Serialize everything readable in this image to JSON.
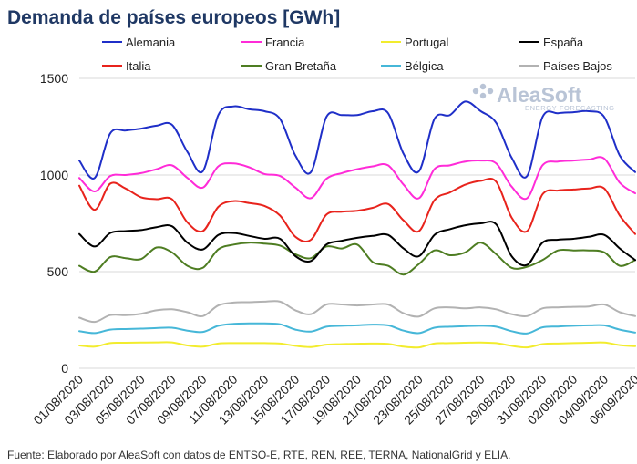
{
  "chart_data": {
    "type": "line",
    "title": "Demanda de países europeos [GWh]",
    "xlabel": "",
    "ylabel": "",
    "ylim": [
      0,
      1500
    ],
    "yticks": [
      0,
      500,
      1000,
      1500
    ],
    "grid": "horizontal",
    "legend": "top",
    "x": [
      "01/08/2020",
      "02/08/2020",
      "03/08/2020",
      "04/08/2020",
      "05/08/2020",
      "06/08/2020",
      "07/08/2020",
      "08/08/2020",
      "09/08/2020",
      "10/08/2020",
      "11/08/2020",
      "12/08/2020",
      "13/08/2020",
      "14/08/2020",
      "15/08/2020",
      "16/08/2020",
      "17/08/2020",
      "18/08/2020",
      "19/08/2020",
      "20/08/2020",
      "21/08/2020",
      "22/08/2020",
      "23/08/2020",
      "24/08/2020",
      "25/08/2020",
      "26/08/2020",
      "27/08/2020",
      "28/08/2020",
      "29/08/2020",
      "30/08/2020",
      "31/08/2020",
      "01/09/2020",
      "02/09/2020",
      "03/09/2020",
      "04/09/2020",
      "05/09/2020",
      "06/09/2020"
    ],
    "xtick_labels": [
      "01/08/2020",
      "03/08/2020",
      "05/08/2020",
      "07/08/2020",
      "09/08/2020",
      "11/08/2020",
      "13/08/2020",
      "15/08/2020",
      "17/08/2020",
      "19/08/2020",
      "21/08/2020",
      "23/08/2020",
      "25/08/2020",
      "27/08/2020",
      "29/08/2020",
      "31/08/2020",
      "02/09/2020",
      "04/09/2020",
      "06/09/2020"
    ],
    "series": [
      {
        "name": "Alemania",
        "color": "#1f2fc8",
        "values": [
          1075,
          985,
          1215,
          1230,
          1240,
          1255,
          1260,
          1120,
          1020,
          1310,
          1355,
          1340,
          1330,
          1290,
          1100,
          1015,
          1300,
          1310,
          1310,
          1330,
          1320,
          1110,
          1020,
          1290,
          1310,
          1380,
          1330,
          1270,
          1090,
          995,
          1300,
          1320,
          1325,
          1330,
          1300,
          1100,
          1015
        ]
      },
      {
        "name": "Francia",
        "color": "#ff2bd8",
        "values": [
          985,
          915,
          995,
          1000,
          1010,
          1030,
          1050,
          985,
          935,
          1045,
          1060,
          1040,
          1005,
          995,
          935,
          880,
          980,
          1010,
          1030,
          1045,
          1050,
          950,
          880,
          1030,
          1050,
          1070,
          1075,
          1060,
          940,
          880,
          1050,
          1070,
          1075,
          1080,
          1085,
          960,
          905
        ]
      },
      {
        "name": "Portugal",
        "color": "#f2ec2e",
        "values": [
          118,
          112,
          130,
          132,
          133,
          134,
          134,
          118,
          112,
          128,
          130,
          130,
          130,
          128,
          116,
          110,
          122,
          125,
          127,
          128,
          126,
          112,
          108,
          128,
          130,
          132,
          133,
          130,
          116,
          108,
          125,
          128,
          130,
          132,
          133,
          120,
          114
        ]
      },
      {
        "name": "España",
        "color": "#000000",
        "values": [
          695,
          630,
          700,
          710,
          715,
          730,
          735,
          650,
          615,
          690,
          700,
          685,
          670,
          670,
          580,
          555,
          640,
          660,
          675,
          685,
          690,
          620,
          580,
          690,
          720,
          740,
          750,
          745,
          580,
          535,
          650,
          665,
          670,
          680,
          690,
          620,
          560
        ]
      },
      {
        "name": "Italia",
        "color": "#e8231c",
        "values": [
          945,
          820,
          955,
          930,
          885,
          875,
          875,
          755,
          710,
          835,
          865,
          855,
          840,
          790,
          680,
          665,
          795,
          810,
          815,
          830,
          850,
          765,
          710,
          870,
          910,
          950,
          970,
          965,
          780,
          710,
          900,
          920,
          925,
          930,
          930,
          790,
          695
        ]
      },
      {
        "name": "Gran Bretaña",
        "color": "#4e7d22",
        "values": [
          530,
          500,
          575,
          570,
          565,
          625,
          600,
          530,
          520,
          615,
          640,
          650,
          645,
          635,
          590,
          570,
          630,
          620,
          640,
          550,
          530,
          485,
          540,
          610,
          585,
          600,
          650,
          590,
          520,
          525,
          560,
          610,
          610,
          610,
          600,
          530,
          560
        ]
      },
      {
        "name": "Bélgica",
        "color": "#46b7d8",
        "values": [
          192,
          182,
          200,
          203,
          205,
          208,
          210,
          195,
          188,
          220,
          230,
          232,
          232,
          228,
          200,
          190,
          215,
          220,
          222,
          226,
          222,
          195,
          182,
          210,
          215,
          218,
          220,
          215,
          192,
          180,
          212,
          216,
          220,
          222,
          222,
          200,
          185
        ]
      },
      {
        "name": "Países Bajos",
        "color": "#b2b2b2",
        "values": [
          262,
          240,
          275,
          275,
          282,
          300,
          305,
          290,
          270,
          325,
          340,
          342,
          345,
          345,
          300,
          280,
          330,
          330,
          325,
          330,
          330,
          285,
          268,
          310,
          315,
          310,
          315,
          305,
          280,
          270,
          310,
          315,
          318,
          320,
          330,
          290,
          270
        ]
      }
    ]
  },
  "source_text": "Fuente: Elaborado por AleaSoft con datos de ENTSO-E, RTE, REN, REE, TERNA, NationalGrid y ELIA.",
  "watermark": {
    "brand": "AleaSoft",
    "tagline": "ENERGY FORECASTING"
  }
}
